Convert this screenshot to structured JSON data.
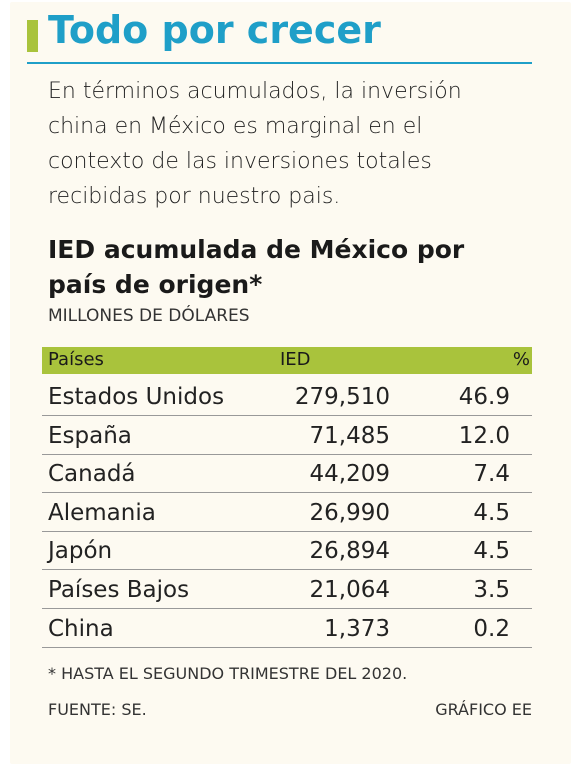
{
  "header": {
    "title": "Todo por crecer",
    "intro": "En términos acumulados, la inversión china en México es marginal en el contexto de las inversiones totales recibidas por nuestro pais."
  },
  "chart_data": {
    "type": "table",
    "title": "IED acumulada de México por país de origen*",
    "subtitle": "MILLONES DE DÓLARES",
    "columns": [
      "Países",
      "IED",
      "%"
    ],
    "rows": [
      {
        "country": "Estados Unidos",
        "ied": "279,510",
        "pct": "46.9"
      },
      {
        "country": "España",
        "ied": "71,485",
        "pct": "12.0"
      },
      {
        "country": "Canadá",
        "ied": "44,209",
        "pct": "7.4"
      },
      {
        "country": "Alemania",
        "ied": "26,990",
        "pct": "4.5"
      },
      {
        "country": "Japón",
        "ied": "26,894",
        "pct": "4.5"
      },
      {
        "country": "Países Bajos",
        "ied": "21,064",
        "pct": "3.5"
      },
      {
        "country": "China",
        "ied": "1,373",
        "pct": "0.2"
      }
    ],
    "footnote": "* HASTA EL SEGUNDO TRIMESTRE DEL 2020.",
    "source": "FUENTE: SE.",
    "credit": "GRÁFICO EE"
  },
  "colors": {
    "accent_green": "#a9c33c",
    "title_blue": "#1f9fc8",
    "background": "#fdfaf1"
  }
}
